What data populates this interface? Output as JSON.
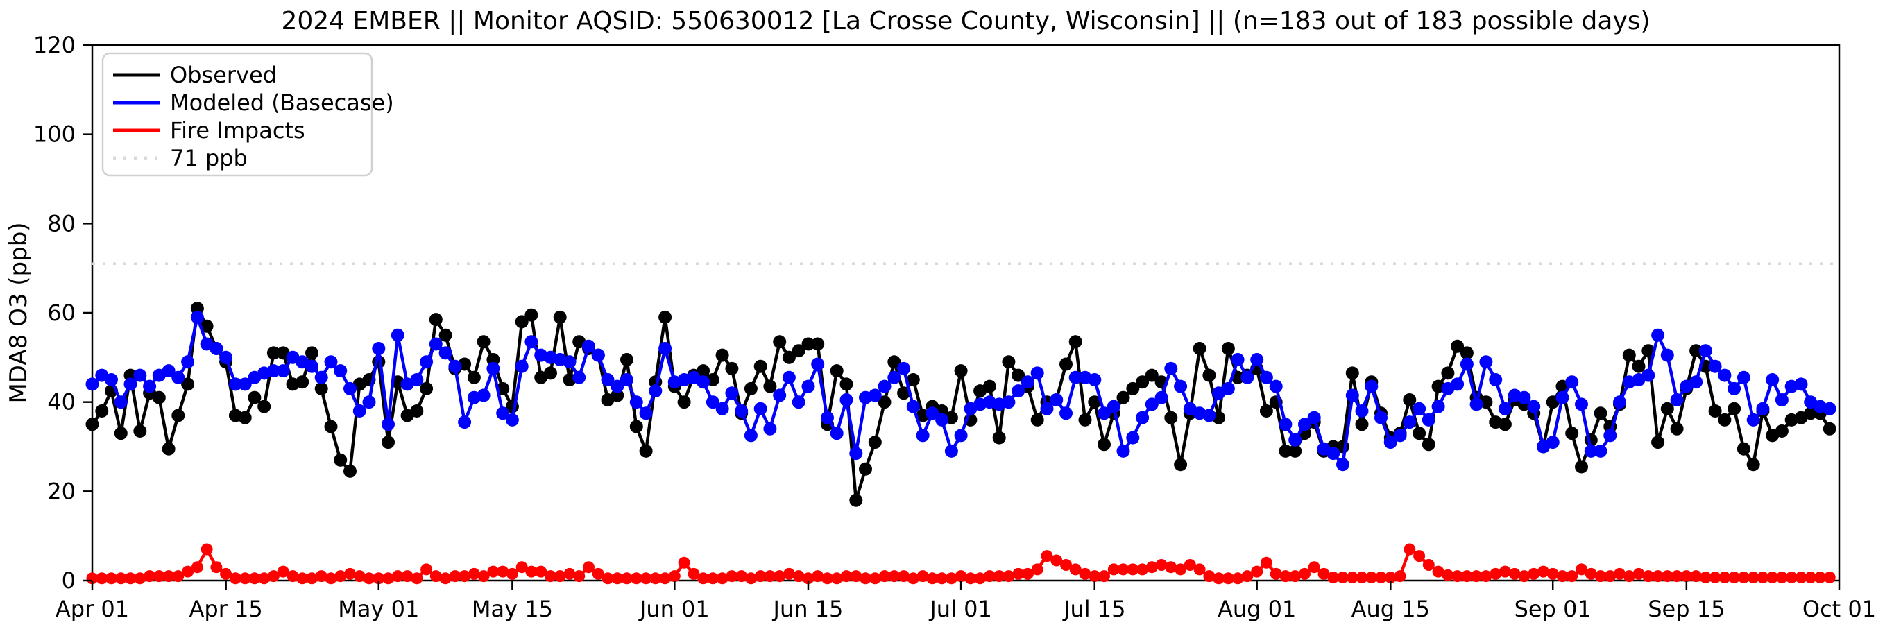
{
  "page": {
    "title": "2024 EMBER || Monitor AQSID: 550630012 [La Crosse County, Wisconsin] || (n=183 out of 183 possible days)"
  },
  "legend": [
    {
      "label": "Observed",
      "color": "#000000",
      "style": "solid"
    },
    {
      "label": "Modeled (Basecase)",
      "color": "#0000ff",
      "style": "solid"
    },
    {
      "label": "Fire Impacts",
      "color": "#ff0000",
      "style": "solid"
    },
    {
      "label": "71 ppb",
      "color": "#d9d9d9",
      "style": "dotted"
    }
  ],
  "chart_data": {
    "type": "line",
    "title": "2024 EMBER || Monitor AQSID: 550630012 [La Crosse County, Wisconsin] || (n=183 out of 183 possible days)",
    "xlabel": "",
    "ylabel": "MDA8 O3 (ppb)",
    "ylim": [
      0,
      120
    ],
    "yticks": [
      0,
      20,
      40,
      60,
      80,
      100,
      120
    ],
    "grid": false,
    "legend_position": "upper left",
    "x_axis": {
      "start": "Apr 01",
      "end": "Oct 01",
      "n_days": 183
    },
    "xticks": [
      {
        "label": "Apr 01",
        "day": 1
      },
      {
        "label": "Apr 15",
        "day": 15
      },
      {
        "label": "May 01",
        "day": 31
      },
      {
        "label": "May 15",
        "day": 45
      },
      {
        "label": "Jun 01",
        "day": 62
      },
      {
        "label": "Jun 15",
        "day": 76
      },
      {
        "label": "Jul 01",
        "day": 92
      },
      {
        "label": "Jul 15",
        "day": 106
      },
      {
        "label": "Aug 01",
        "day": 123
      },
      {
        "label": "Aug 15",
        "day": 137
      },
      {
        "label": "Sep 01",
        "day": 154
      },
      {
        "label": "Sep 15",
        "day": 168
      },
      {
        "label": "Oct 01",
        "day": 184
      }
    ],
    "reference_line": {
      "label": "71 ppb",
      "value": 71,
      "color": "#d9d9d9",
      "style": "dotted"
    },
    "series": [
      {
        "name": "Observed",
        "color": "#000000",
        "marker": "o",
        "values": [
          35,
          38,
          42.5,
          33,
          46,
          33.5,
          42,
          41,
          29.5,
          37,
          44,
          61,
          57,
          52,
          49,
          37,
          36.5,
          41,
          39,
          51,
          51,
          44,
          44.5,
          51,
          43,
          34.5,
          27,
          24.5,
          44,
          45,
          49,
          31,
          44.5,
          37,
          38,
          43,
          58.5,
          55,
          47.5,
          48.5,
          45.5,
          53.5,
          49.5,
          43,
          39,
          58,
          59.5,
          45.5,
          46.5,
          59,
          45,
          53.5,
          52,
          50.5,
          40.5,
          41.5,
          49.5,
          34.5,
          29,
          44.5,
          59,
          43.5,
          40,
          46,
          47,
          45,
          50.5,
          47.5,
          37.5,
          43,
          48,
          43.5,
          53.5,
          50,
          51.5,
          53,
          53,
          35,
          47,
          44,
          18,
          25,
          31,
          40,
          49,
          42,
          45,
          37,
          39,
          38,
          36.5,
          47,
          36,
          42.5,
          43.5,
          32,
          49,
          46,
          43.5,
          36,
          40,
          40.5,
          48.5,
          53.5,
          36,
          40,
          30.5,
          37.5,
          41,
          43,
          44.5,
          46,
          44.5,
          36.5,
          26,
          37.5,
          52,
          46,
          36.5,
          52,
          45.5,
          46,
          47.5,
          38,
          40,
          29,
          29,
          33,
          35.5,
          29,
          30,
          30,
          46.5,
          35,
          44.5,
          37.5,
          32,
          33,
          40.5,
          33,
          30.5,
          43.5,
          46.5,
          52.5,
          51,
          41,
          40,
          35.5,
          35,
          40.5,
          39.5,
          37.5,
          30,
          40,
          43.5,
          33,
          25.5,
          31.5,
          37.5,
          34.5,
          39.5,
          50.5,
          48,
          51.5,
          31,
          38.5,
          34,
          43,
          51.5,
          48,
          38,
          36,
          38.5,
          29.5,
          26,
          38,
          32.5,
          33.5,
          36,
          36.5,
          37.5,
          37.5,
          34
        ]
      },
      {
        "name": "Modeled (Basecase)",
        "color": "#0000ff",
        "marker": "o",
        "values": [
          44,
          46,
          45,
          40,
          44,
          46,
          43.5,
          46,
          47,
          45.5,
          49,
          59,
          53,
          52,
          50,
          44,
          44,
          45.5,
          46.5,
          47,
          47,
          50,
          49,
          48,
          45.5,
          49,
          47,
          43,
          38,
          40,
          52,
          35,
          55,
          44,
          45,
          49,
          53,
          51,
          48,
          35.5,
          41,
          41.5,
          47.5,
          37.5,
          36,
          48,
          53.5,
          50.5,
          50,
          49.5,
          49,
          45.5,
          52.5,
          50.5,
          45,
          43.5,
          45,
          40,
          37.5,
          42.5,
          52,
          44.5,
          45,
          45.5,
          44.5,
          40,
          38.5,
          42,
          38,
          32.5,
          38.5,
          34,
          41.5,
          45.5,
          40,
          43.5,
          48.5,
          36.5,
          33,
          40.5,
          28.5,
          41,
          41.5,
          43.5,
          45.5,
          47.5,
          39,
          32.5,
          37.5,
          36,
          29,
          32.5,
          38.5,
          39.5,
          40,
          39.5,
          40,
          42.5,
          44.5,
          46.5,
          38.5,
          40.5,
          37.5,
          45.5,
          45.5,
          45,
          37.5,
          39,
          29,
          32,
          36.5,
          39.5,
          41,
          47.5,
          43.5,
          38.5,
          37.5,
          37,
          42,
          43,
          49.5,
          45.5,
          49.5,
          45.5,
          43.5,
          35,
          31.5,
          35,
          36.5,
          29.5,
          28.5,
          26,
          41.5,
          38,
          43.5,
          36.5,
          31,
          32.5,
          35.5,
          38.5,
          36,
          39,
          43,
          44,
          48.5,
          39.5,
          49,
          45,
          38.5,
          41.5,
          41,
          39,
          30,
          31,
          41,
          44.5,
          39.5,
          29,
          29,
          32.5,
          40,
          44.5,
          45,
          46,
          55,
          50.5,
          40.5,
          43.5,
          44.5,
          51.5,
          48,
          46,
          43,
          45.5,
          36,
          38.5,
          45,
          40.5,
          43.5,
          44,
          40,
          39,
          38.5
        ]
      },
      {
        "name": "Fire Impacts",
        "color": "#ff0000",
        "marker": "o",
        "values": [
          0.5,
          0.5,
          0.5,
          0.5,
          0.5,
          0.5,
          1,
          1,
          1,
          1,
          2,
          3,
          7,
          3,
          1.5,
          0.5,
          0.5,
          0.5,
          0.5,
          1,
          2,
          1,
          0.5,
          0.5,
          1,
          0.5,
          1,
          1.5,
          1,
          0.5,
          0.5,
          0.5,
          1,
          1,
          0.5,
          2.5,
          1,
          0.5,
          1,
          1,
          1.5,
          1,
          2,
          2,
          1.5,
          3,
          2,
          2,
          1,
          1,
          1.5,
          1,
          3,
          1.5,
          0.5,
          0.5,
          0.5,
          0.5,
          0.5,
          0.5,
          0.5,
          1,
          4,
          1.5,
          0.5,
          0.5,
          0.5,
          1,
          1,
          0.5,
          1,
          1,
          1,
          1.5,
          1,
          0.5,
          1,
          0.5,
          0.5,
          1,
          1,
          0.5,
          0.5,
          1,
          1,
          1,
          0.5,
          1,
          0.5,
          0.5,
          0.5,
          1,
          0.5,
          0.5,
          1,
          1,
          1,
          1.5,
          1.5,
          2.5,
          5.5,
          4.5,
          3.5,
          2.5,
          1.5,
          1,
          1,
          2.5,
          2.5,
          2.5,
          2.5,
          3,
          3.5,
          3,
          2.5,
          3.5,
          2.5,
          1,
          0.5,
          0.5,
          0.5,
          1,
          2,
          4,
          1.5,
          1,
          1,
          1.5,
          3,
          1.5,
          0.7,
          0.7,
          0.7,
          0.7,
          0.7,
          0.7,
          0.7,
          1,
          7,
          5.5,
          3.5,
          2,
          1.2,
          1,
          1,
          1,
          1,
          1.5,
          2,
          1.5,
          1,
          1.5,
          2,
          1.5,
          1,
          1,
          2.5,
          1.5,
          1,
          1,
          1.5,
          1,
          1.5,
          1,
          1,
          1,
          1,
          1,
          1,
          0.7,
          0.7,
          0.7,
          0.7,
          0.7,
          0.7,
          0.7,
          0.7,
          0.7,
          0.7,
          0.7,
          0.7,
          0.7,
          0.7
        ]
      }
    ]
  }
}
